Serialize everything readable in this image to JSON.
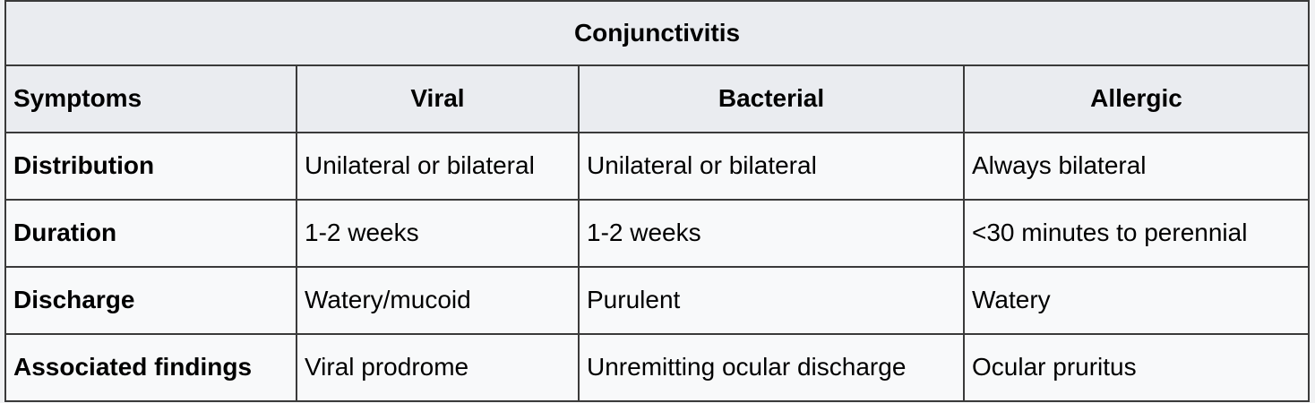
{
  "table": {
    "title": "Conjunctivitis",
    "headers": [
      "Symptoms",
      "Viral",
      "Bacterial",
      "Allergic"
    ],
    "rows": [
      {
        "label": "Distribution",
        "viral": "Unilateral or bilateral",
        "bacterial": "Unilateral or bilateral",
        "allergic": "Always bilateral"
      },
      {
        "label": "Duration",
        "viral": "1-2 weeks",
        "bacterial": "1-2 weeks",
        "allergic": "<30 minutes to perennial"
      },
      {
        "label": "Discharge",
        "viral": "Watery/mucoid",
        "bacterial": "Purulent",
        "allergic": "Watery"
      },
      {
        "label": "Associated findings",
        "viral": "Viral prodrome",
        "bacterial": "Unremitting ocular discharge",
        "allergic": "Ocular pruritus"
      }
    ]
  }
}
